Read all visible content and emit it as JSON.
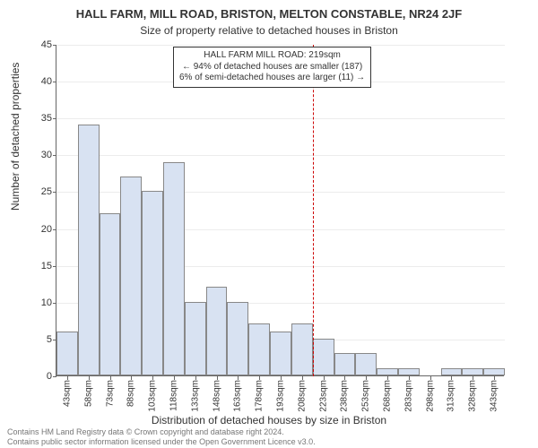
{
  "title_main": "HALL FARM, MILL ROAD, BRISTON, MELTON CONSTABLE, NR24 2JF",
  "title_sub": "Size of property relative to detached houses in Briston",
  "ylabel": "Number of detached properties",
  "xlabel": "Distribution of detached houses by size in Briston",
  "chart": {
    "type": "histogram",
    "ylim": [
      0,
      45
    ],
    "ytick_step": 5,
    "bar_fill": "#d8e2f2",
    "bar_stroke": "#888888",
    "grid_color": "#666666",
    "background_color": "#ffffff",
    "ref_line_color": "#cc0000",
    "ref_line_x_index": 12,
    "categories": [
      "43sqm",
      "58sqm",
      "73sqm",
      "88sqm",
      "103sqm",
      "118sqm",
      "133sqm",
      "148sqm",
      "163sqm",
      "178sqm",
      "193sqm",
      "208sqm",
      "223sqm",
      "238sqm",
      "253sqm",
      "268sqm",
      "283sqm",
      "298sqm",
      "313sqm",
      "328sqm",
      "343sqm"
    ],
    "values": [
      6,
      34,
      22,
      27,
      25,
      29,
      10,
      12,
      10,
      7,
      6,
      7,
      5,
      3,
      3,
      1,
      1,
      0,
      1,
      1,
      1
    ]
  },
  "annotation": {
    "line1": "HALL FARM MILL ROAD: 219sqm",
    "line2": "← 94% of detached houses are smaller (187)",
    "line3": "6% of semi-detached houses are larger (11) →"
  },
  "footer": {
    "line1": "Contains HM Land Registry data © Crown copyright and database right 2024.",
    "line2": "Contains public sector information licensed under the Open Government Licence v3.0."
  }
}
